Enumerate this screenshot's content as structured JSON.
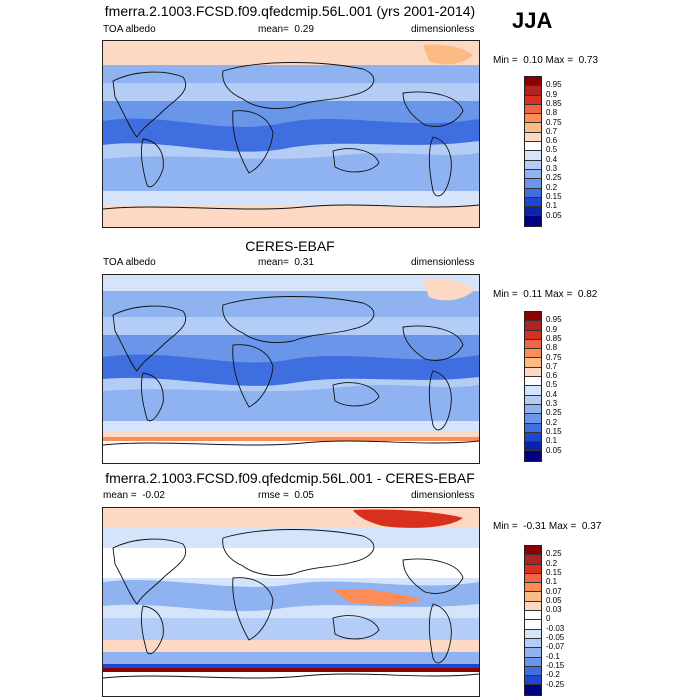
{
  "season": "JJA",
  "panels": [
    {
      "title": "fmerra.2.1003.FCSD.f09.qfedcmip.56L.001 (yrs 2001-2014)",
      "left_label": "TOA albedo",
      "mean_text": "mean=  0.29",
      "right_label": "dimensionless",
      "minmax": "Min =  0.10 Max =  0.73",
      "colorbar": {
        "labels": [
          "0.95",
          "0.9",
          "0.85",
          "0.8",
          "0.75",
          "0.7",
          "0.6",
          "0.5",
          "0.4",
          "0.3",
          "0.25",
          "0.2",
          "0.15",
          "0.1",
          "0.05"
        ],
        "colors": [
          "#8b0000",
          "#b22222",
          "#d7301f",
          "#ef6548",
          "#fc8d59",
          "#fdbb84",
          "#fdd9c4",
          "#ffffff",
          "#d6e4fb",
          "#b3cdf6",
          "#8fb3f0",
          "#6a96ea",
          "#3f6ee0",
          "#1d47d1",
          "#0a23a8",
          "#000080"
        ]
      }
    },
    {
      "title": "CERES-EBAF",
      "left_label": "TOA albedo",
      "mean_text": "mean=  0.31",
      "right_label": "dimensionless",
      "minmax": "Min =  0.11 Max =  0.82",
      "colorbar": {
        "labels": [
          "0.95",
          "0.9",
          "0.85",
          "0.8",
          "0.75",
          "0.7",
          "0.6",
          "0.5",
          "0.4",
          "0.3",
          "0.25",
          "0.2",
          "0.15",
          "0.1",
          "0.05"
        ],
        "colors": [
          "#8b0000",
          "#b22222",
          "#d7301f",
          "#ef6548",
          "#fc8d59",
          "#fdbb84",
          "#fdd9c4",
          "#ffffff",
          "#d6e4fb",
          "#b3cdf6",
          "#8fb3f0",
          "#6a96ea",
          "#3f6ee0",
          "#1d47d1",
          "#0a23a8",
          "#000080"
        ]
      }
    },
    {
      "title": "fmerra.2.1003.FCSD.f09.qfedcmip.56L.001 - CERES-EBAF",
      "left_label": "mean =  -0.02",
      "mean_text": "rmse =  0.05",
      "right_label": "dimensionless",
      "minmax": "Min =  -0.31 Max =  0.37",
      "colorbar": {
        "labels": [
          "0.25",
          "0.2",
          "0.15",
          "0.1",
          "0.07",
          "0.05",
          "0.03",
          "0",
          "-0.03",
          "-0.05",
          "-0.07",
          "-0.1",
          "-0.15",
          "-0.2",
          "-0.25"
        ],
        "colors": [
          "#8b0000",
          "#b22222",
          "#d7301f",
          "#ef6548",
          "#fc8d59",
          "#fdbb84",
          "#fdd9c4",
          "#ffffff",
          "#ffffff",
          "#d6e4fb",
          "#b3cdf6",
          "#8fb3f0",
          "#6a96ea",
          "#3f6ee0",
          "#1d47d1",
          "#000080"
        ]
      }
    }
  ]
}
